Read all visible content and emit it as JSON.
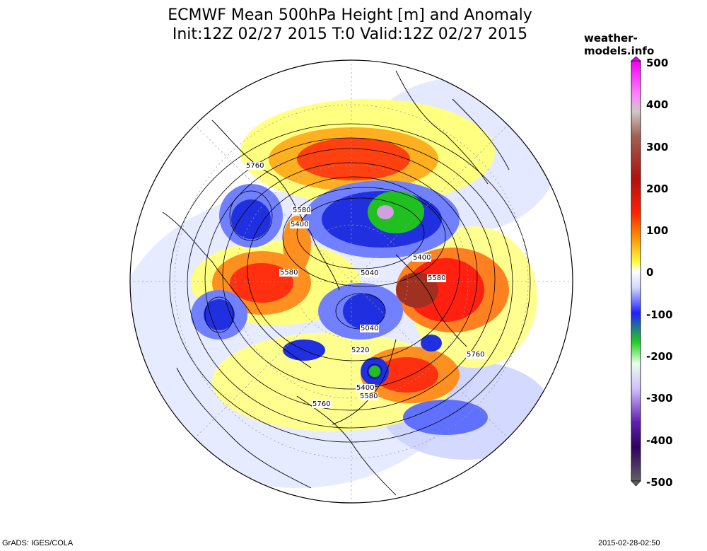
{
  "title": {
    "line1": "ECMWF Mean 500hPa Height [m] and Anomaly",
    "line2": "Init:12Z 02/27 2015 T:0 Valid:12Z 02/27 2015"
  },
  "site": "weather-models.info",
  "footer": {
    "left": "GrADS: IGES/COLA",
    "right": "2015-02-28-02:50"
  },
  "colorbar": {
    "labels": [
      "500",
      "400",
      "300",
      "200",
      "100",
      "0",
      "-100",
      "-200",
      "-300",
      "-400",
      "-500"
    ]
  },
  "contour_labels": [
    {
      "text": "5760"
    },
    {
      "text": "5580"
    },
    {
      "text": "5400"
    },
    {
      "text": "5580"
    },
    {
      "text": "5040"
    },
    {
      "text": "5400"
    },
    {
      "text": "5580"
    },
    {
      "text": "5040"
    },
    {
      "text": "5220"
    },
    {
      "text": "5760"
    },
    {
      "text": "5400"
    },
    {
      "text": "5580"
    },
    {
      "text": "5760"
    }
  ]
}
